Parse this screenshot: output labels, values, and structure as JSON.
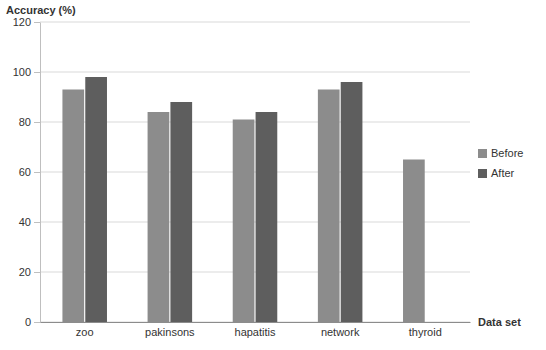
{
  "chart_data": {
    "type": "bar",
    "y_label": "Accuracy (%)",
    "x_label": "Data set",
    "categories": [
      "zoo",
      "pakinsons",
      "hapatitis",
      "network",
      "thyroid"
    ],
    "series": [
      {
        "name": "Before",
        "color": "#8c8c8c",
        "values": [
          93,
          84,
          81,
          93,
          65
        ]
      },
      {
        "name": "After",
        "color": "#5e5e5e",
        "values": [
          98,
          88,
          84,
          96,
          null
        ]
      }
    ],
    "ylim": [
      0,
      120
    ],
    "yticks": [
      0,
      20,
      40,
      60,
      80,
      100,
      120
    ],
    "grid": true,
    "legend": "right"
  }
}
